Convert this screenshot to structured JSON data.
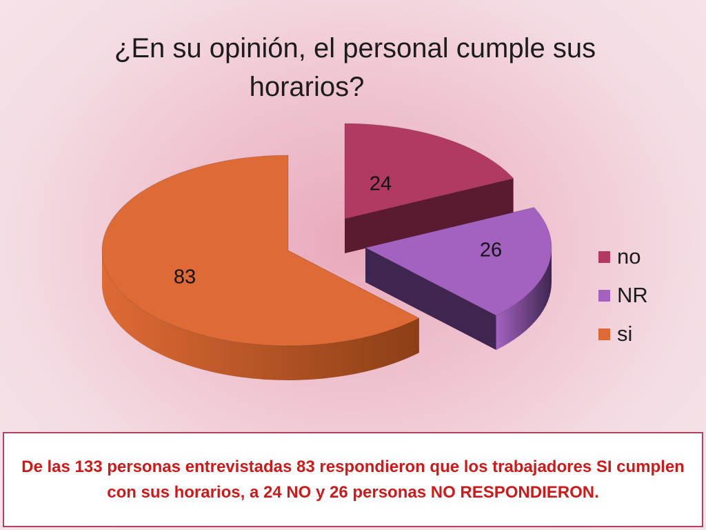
{
  "slide": {
    "title_line1": "¿En su opinión, el personal cumple sus",
    "title_line2": "horarios?",
    "note": "De  las 133 personas entrevistadas 83 respondieron que  los trabajadores SI cumplen con sus horarios,  a 24  NO y 26 personas NO RESPONDIERON."
  },
  "chart_data": {
    "type": "pie",
    "title": "¿En su opinión, el personal cumple sus horarios?",
    "categories": [
      "no",
      "NR",
      "si"
    ],
    "values": [
      24,
      26,
      83
    ],
    "colors": [
      "#b03a62",
      "#a462c0",
      "#de6a35"
    ],
    "side_colors": [
      "#5a1a30",
      "#3f2650",
      "#8c3f16"
    ],
    "exploded": true,
    "three_d": true,
    "legend": {
      "placement": "right",
      "items": [
        "no",
        "NR",
        "si"
      ]
    },
    "data_labels": [
      "24",
      "26",
      "83"
    ]
  }
}
